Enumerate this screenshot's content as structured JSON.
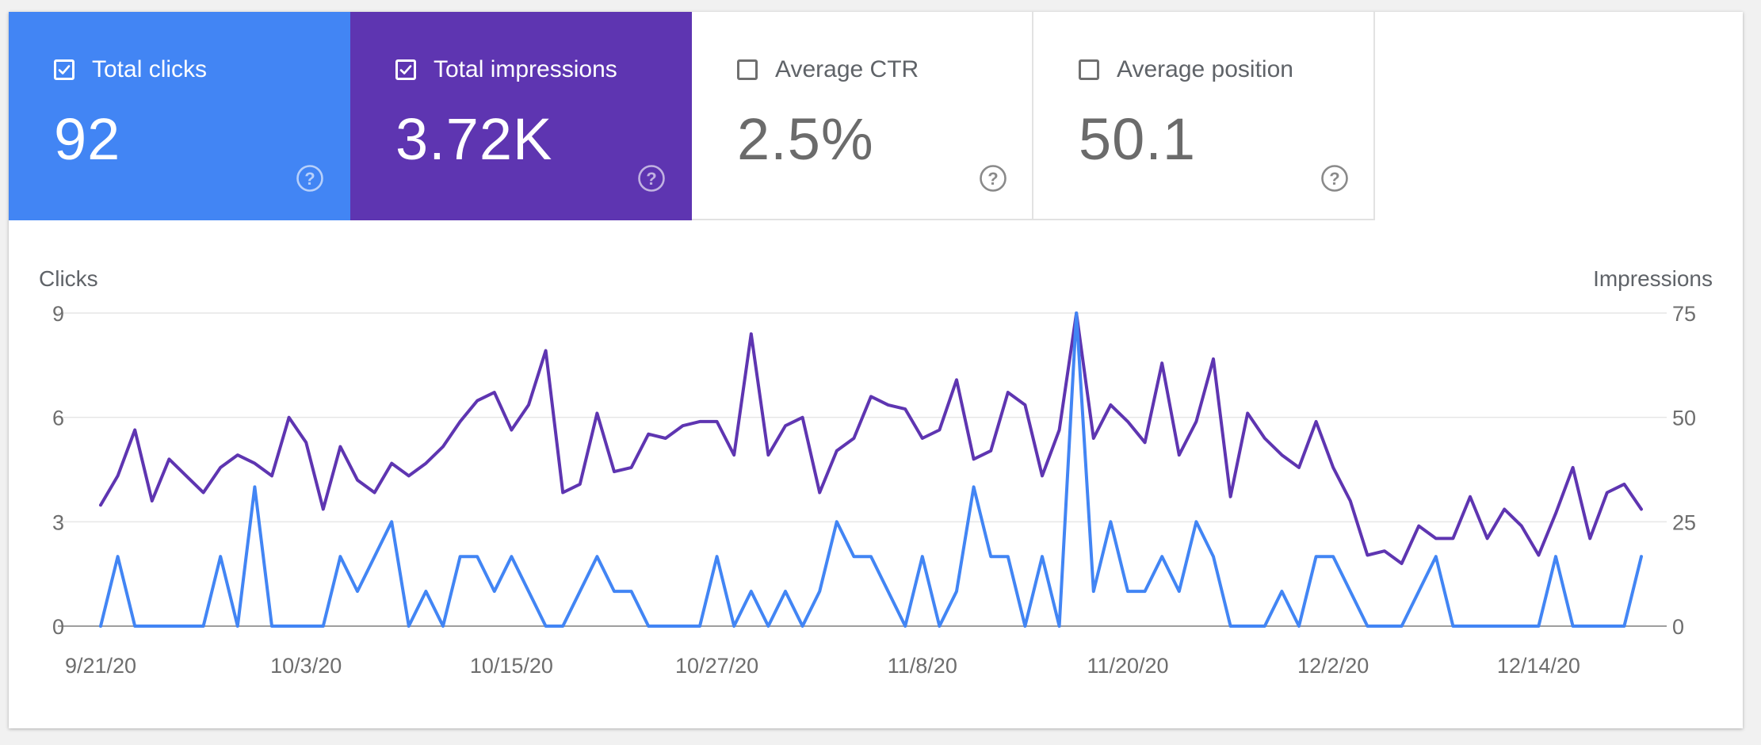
{
  "metrics": [
    {
      "label": "Total clicks",
      "value": "92",
      "selected": true,
      "color": "#4285f4"
    },
    {
      "label": "Total impressions",
      "value": "3.72K",
      "selected": true,
      "color": "#5e35b1"
    },
    {
      "label": "Average CTR",
      "value": "2.5%",
      "selected": false,
      "color": "#ffffff"
    },
    {
      "label": "Average position",
      "value": "50.1",
      "selected": false,
      "color": "#ffffff"
    }
  ],
  "chart_data": {
    "type": "line",
    "left_axis_label": "Clicks",
    "right_axis_label": "Impressions",
    "left_ylim": [
      0,
      9
    ],
    "right_ylim": [
      0,
      75
    ],
    "left_ticks": [
      "0",
      "3",
      "6",
      "9"
    ],
    "right_ticks": [
      "0",
      "25",
      "50",
      "75"
    ],
    "x_tick_labels": [
      "9/21/20",
      "10/3/20",
      "10/15/20",
      "10/27/20",
      "11/8/20",
      "11/20/20",
      "12/2/20",
      "12/14/20"
    ],
    "x_tick_day_index": [
      0,
      12,
      24,
      36,
      48,
      60,
      72,
      84
    ],
    "series": [
      {
        "name": "Total impressions",
        "axis": "right",
        "color": "#5e35b1",
        "values": [
          29,
          36,
          47,
          30,
          40,
          36,
          32,
          38,
          41,
          39,
          36,
          50,
          44,
          28,
          43,
          35,
          32,
          39,
          36,
          39,
          43,
          49,
          54,
          56,
          47,
          53,
          66,
          32,
          34,
          51,
          37,
          38,
          46,
          45,
          48,
          49,
          49,
          41,
          70,
          41,
          48,
          50,
          32,
          42,
          45,
          55,
          53,
          52,
          45,
          47,
          59,
          40,
          42,
          56,
          53,
          36,
          47,
          75,
          45,
          53,
          49,
          44,
          63,
          41,
          49,
          64,
          31,
          51,
          45,
          41,
          38,
          49,
          38,
          30,
          17,
          18,
          15,
          24,
          21,
          21,
          31,
          21,
          28,
          24,
          17,
          27,
          38,
          21,
          32,
          34,
          28
        ]
      },
      {
        "name": "Total clicks",
        "axis": "left",
        "color": "#4285f4",
        "values": [
          0,
          2,
          0,
          0,
          0,
          0,
          0,
          2,
          0,
          4,
          0,
          0,
          0,
          0,
          2,
          1,
          2,
          3,
          0,
          1,
          0,
          2,
          2,
          1,
          2,
          1,
          0,
          0,
          1,
          2,
          1,
          1,
          0,
          0,
          0,
          0,
          2,
          0,
          1,
          0,
          1,
          0,
          1,
          3,
          2,
          2,
          1,
          0,
          2,
          0,
          1,
          4,
          2,
          2,
          0,
          2,
          0,
          9,
          1,
          3,
          1,
          1,
          2,
          1,
          3,
          2,
          0,
          0,
          0,
          1,
          0,
          2,
          2,
          1,
          0,
          0,
          0,
          1,
          2,
          0,
          0,
          0,
          0,
          0,
          0,
          2,
          0,
          0,
          0,
          0,
          2
        ]
      }
    ]
  }
}
